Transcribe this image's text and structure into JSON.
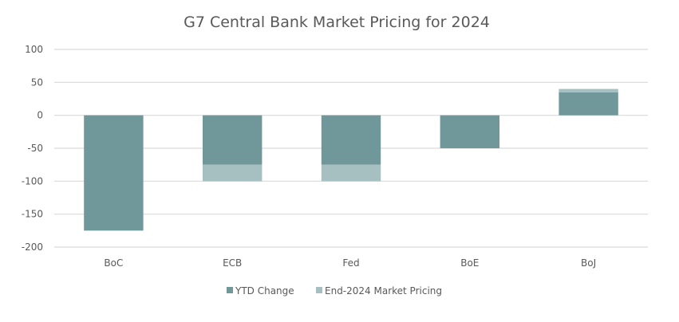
{
  "chart_data": {
    "type": "bar",
    "stacked": true,
    "title": "G7 Central Bank Market Pricing for 2024",
    "xlabel": "",
    "ylabel": "",
    "categories": [
      "BoC",
      "ECB",
      "Fed",
      "BoE",
      "BoJ"
    ],
    "series": [
      {
        "name": "YTD Change",
        "color": "#70989A",
        "values": [
          -175,
          -75,
          -75,
          -50,
          35
        ]
      },
      {
        "name": "End-2024 Market Pricing",
        "color": "#A6BFC0",
        "values": [
          0,
          -25,
          -25,
          0,
          5
        ]
      }
    ],
    "ylim": [
      -200,
      100
    ],
    "yticks": [
      100,
      50,
      0,
      -50,
      -100,
      -150,
      -200
    ],
    "grid": true,
    "legend": "bottom"
  }
}
